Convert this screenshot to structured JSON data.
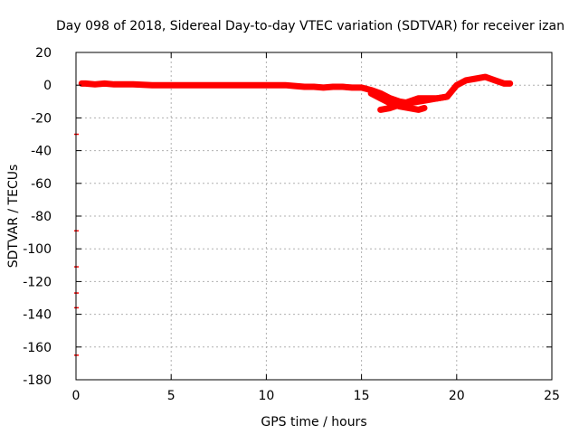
{
  "chart_data": {
    "type": "line",
    "title": "Day 098 of 2018, Sidereal Day-to-day VTEC variation (SDTVAR) for receiver izan",
    "xlabel": "GPS time / hours",
    "ylabel": "SDTVAR / TECUs",
    "xlim": [
      0,
      25
    ],
    "ylim": [
      -180,
      20
    ],
    "xticks": [
      0,
      5,
      10,
      15,
      20,
      25
    ],
    "yticks": [
      20,
      0,
      -20,
      -40,
      -60,
      -80,
      -100,
      -120,
      -140,
      -160,
      -180
    ],
    "grid": true,
    "series_color": "#ff0000",
    "series": [
      {
        "x": [
          0.3,
          0.5,
          1.0,
          1.5,
          2.0,
          2.5,
          3.0,
          4.0,
          5.0,
          6.0,
          7.0,
          8.0,
          9.0,
          10.0,
          11.0,
          11.5,
          12.0,
          12.5,
          13.0,
          13.5,
          14.0,
          14.5,
          15.0,
          15.5,
          16.0,
          16.5,
          17.0,
          17.5,
          18.0,
          18.5,
          19.0,
          19.5,
          20.0,
          20.5,
          21.0,
          21.5,
          22.0,
          22.5,
          22.8
        ],
        "y": [
          1,
          1,
          0.5,
          1,
          0.5,
          0.5,
          0.5,
          0,
          0,
          0,
          0,
          0,
          0,
          0,
          0,
          -0.5,
          -1,
          -1,
          -1.5,
          -1,
          -1,
          -1.5,
          -1.5,
          -3,
          -5,
          -8,
          -10,
          -11,
          -10,
          -9,
          -8,
          -7,
          0,
          3,
          4,
          5,
          3,
          1,
          1
        ]
      },
      {
        "x": [
          15.5,
          16.0,
          16.5,
          17.0,
          17.5,
          18.0,
          18.3
        ],
        "y": [
          -5,
          -8,
          -11,
          -13,
          -14,
          -15,
          -14
        ]
      },
      {
        "x": [
          16.0,
          16.5,
          17.0,
          17.5,
          18.0,
          18.5,
          19.0,
          19.5
        ],
        "y": [
          -15,
          -14,
          -12,
          -10,
          -8,
          -8,
          -8,
          -7
        ]
      }
    ],
    "outliers": [
      {
        "x": 0.0,
        "y": -30
      },
      {
        "x": 0.0,
        "y": -89
      },
      {
        "x": 0.0,
        "y": -111
      },
      {
        "x": 0.0,
        "y": -127
      },
      {
        "x": 0.0,
        "y": -136
      },
      {
        "x": 0.0,
        "y": -165
      }
    ]
  }
}
